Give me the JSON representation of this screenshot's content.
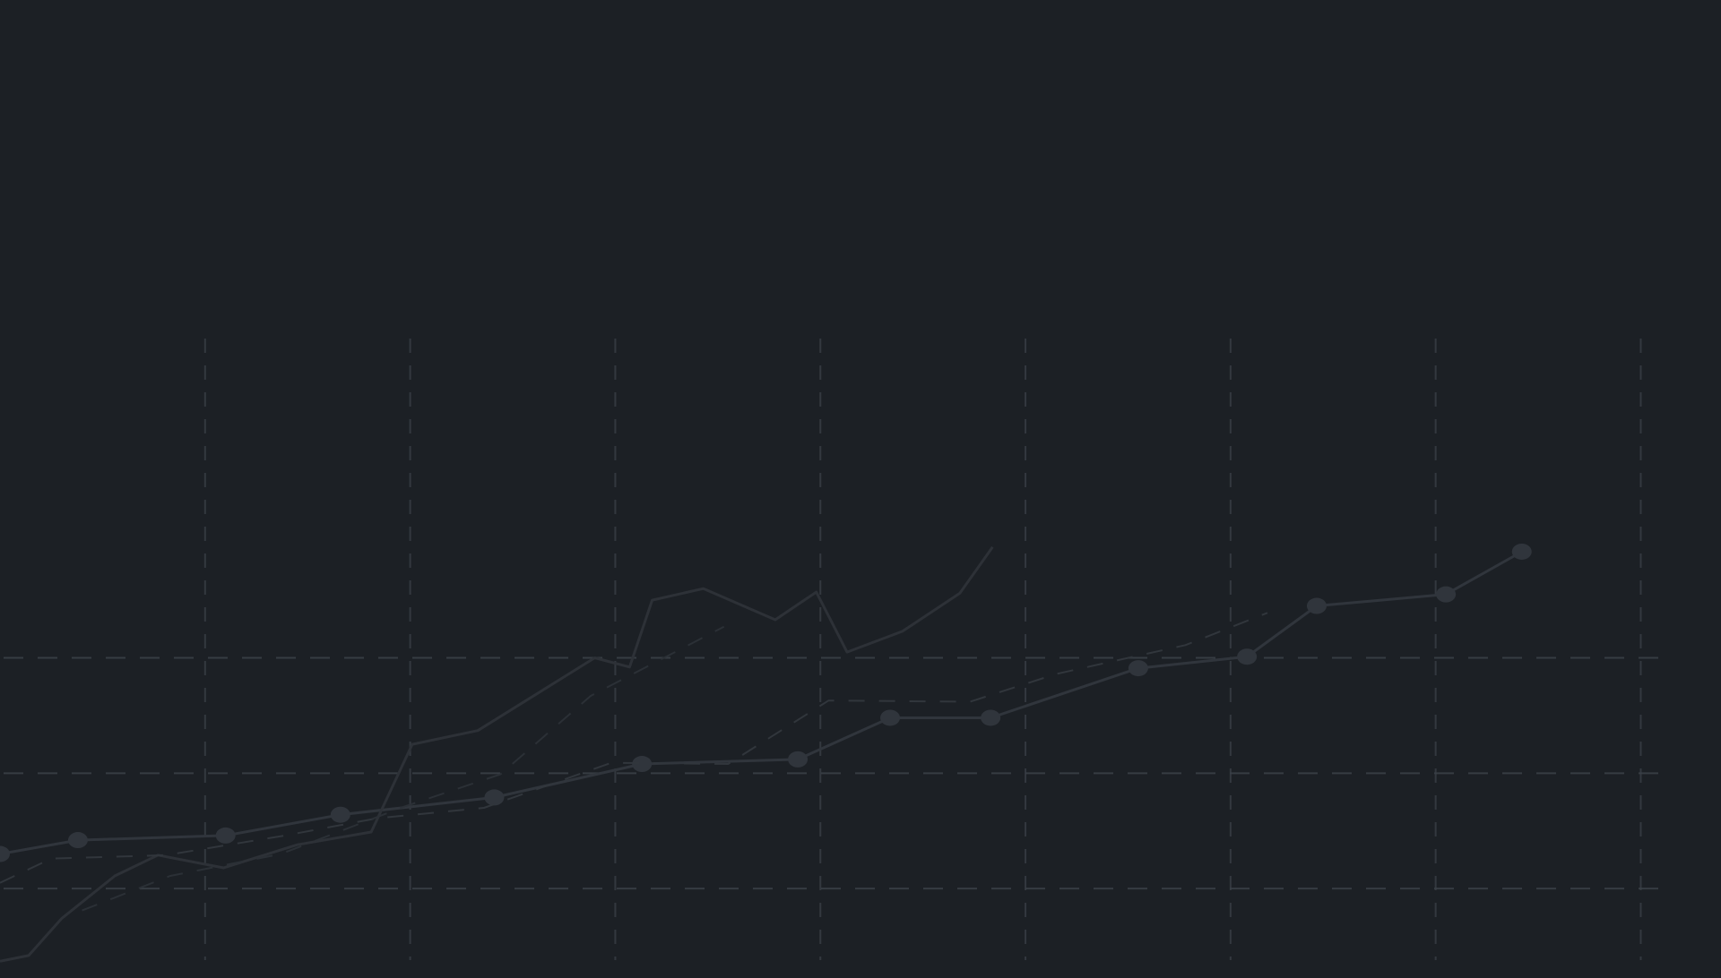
{
  "theme": {
    "background": "#1c2025",
    "grid_color": "#3b4148",
    "series_colors": [
      "#30353c",
      "#2d3137",
      "#31363c",
      "#2b3036"
    ]
  },
  "chart_data": {
    "type": "line",
    "title": "",
    "xlabel": "",
    "ylabel": "",
    "xlim": [
      0,
      8.4
    ],
    "ylim": [
      -1,
      5
    ],
    "grid": true,
    "grid_style": "dashed",
    "x_gridlines": [
      1,
      2,
      3,
      4,
      5,
      6,
      7,
      8
    ],
    "y_gridlines": [
      0,
      1,
      2
    ],
    "legend": "none",
    "series": [
      {
        "style": "solid-markers",
        "x": [
          0,
          0.38,
          1.1,
          1.66,
          2.41,
          3.13,
          3.89,
          4.34,
          4.83,
          5.55,
          6.08,
          6.42,
          7.05,
          7.42
        ],
        "y": [
          0.3,
          0.42,
          0.46,
          0.64,
          0.79,
          1.08,
          1.12,
          1.48,
          1.48,
          1.91,
          2.01,
          2.45,
          2.55,
          2.92
        ]
      },
      {
        "style": "solid",
        "x": [
          0,
          0.14,
          0.3,
          0.56,
          0.77,
          1.09,
          1.45,
          1.81,
          2.01,
          2.33,
          2.9,
          3.07,
          3.18,
          3.43,
          3.78,
          3.98,
          4.13,
          4.4,
          4.68,
          4.84
        ],
        "y": [
          -0.63,
          -0.58,
          -0.26,
          0.11,
          0.29,
          0.18,
          0.38,
          0.49,
          1.25,
          1.37,
          2.0,
          1.92,
          2.5,
          2.6,
          2.33,
          2.57,
          2.05,
          2.23,
          2.56,
          2.96
        ]
      },
      {
        "style": "dashed",
        "x": [
          0,
          0.25,
          0.81,
          1.39,
          1.84,
          2.36,
          2.98,
          3.55,
          4.04,
          4.73,
          5.15,
          5.78,
          6.18
        ],
        "y": [
          0.05,
          0.26,
          0.29,
          0.46,
          0.61,
          0.7,
          1.09,
          1.08,
          1.63,
          1.62,
          1.86,
          2.11,
          2.39
        ]
      },
      {
        "style": "dashed",
        "x": [
          0.4,
          0.83,
          1.37,
          1.97,
          2.44,
          2.88,
          3.53
        ],
        "y": [
          -0.19,
          0.11,
          0.3,
          0.71,
          0.99,
          1.67,
          2.27
        ]
      }
    ]
  }
}
